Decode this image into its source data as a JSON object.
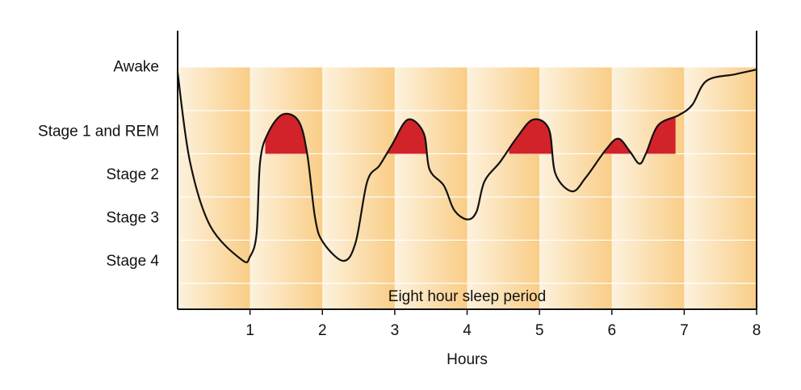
{
  "chart_data": {
    "type": "line",
    "x_label": "Hours",
    "annotation": "Eight hour sleep period",
    "xlim": [
      0,
      8
    ],
    "xticks": [
      1,
      2,
      3,
      4,
      5,
      6,
      7,
      8
    ],
    "ylim": [
      -0.6,
      5.85
    ],
    "yticks": [
      {
        "value": 5,
        "label": "Awake"
      },
      {
        "value": 3.5,
        "label": "Stage 1 and REM"
      },
      {
        "value": 2.5,
        "label": "Stage 2"
      },
      {
        "value": 1.5,
        "label": "Stage 3"
      },
      {
        "value": 0.5,
        "label": "Stage 4"
      }
    ],
    "ygrid": [
      0,
      1,
      2,
      3,
      4
    ],
    "band_top": 5,
    "color": "#111111",
    "band_colors": [
      "#fdf2de",
      "#f9cd86"
    ],
    "rem_level": 3,
    "rem_color": "#d2232a",
    "rem_periods": [
      [
        1.21,
        1.79
      ],
      [
        2.88,
        3.46
      ],
      [
        4.58,
        5.19
      ],
      [
        5.89,
        6.28
      ],
      [
        6.47,
        6.88
      ]
    ],
    "x": [
      0,
      0.17,
      0.45,
      0.89,
      1.0,
      1.09,
      1.14,
      1.25,
      1.45,
      1.67,
      1.79,
      1.9,
      2.01,
      2.29,
      2.46,
      2.62,
      2.79,
      2.96,
      3.18,
      3.4,
      3.48,
      3.68,
      3.82,
      4.0,
      4.13,
      4.24,
      4.46,
      4.69,
      4.91,
      5.13,
      5.22,
      5.45,
      5.64,
      5.92,
      6.09,
      6.25,
      6.38,
      6.47,
      6.64,
      6.92,
      7.11,
      7.31,
      7.7,
      8.0
    ],
    "values": [
      4.88,
      2.82,
      1.33,
      0.54,
      0.62,
      1.14,
      2.82,
      3.48,
      3.91,
      3.76,
      3.0,
      1.51,
      0.95,
      0.52,
      0.95,
      2.36,
      2.73,
      3.2,
      3.79,
      3.48,
      2.64,
      2.26,
      1.7,
      1.48,
      1.66,
      2.36,
      2.82,
      3.38,
      3.79,
      3.57,
      2.54,
      2.13,
      2.45,
      3.1,
      3.35,
      3.05,
      2.77,
      3.0,
      3.66,
      3.89,
      4.13,
      4.69,
      4.84,
      4.95
    ]
  }
}
